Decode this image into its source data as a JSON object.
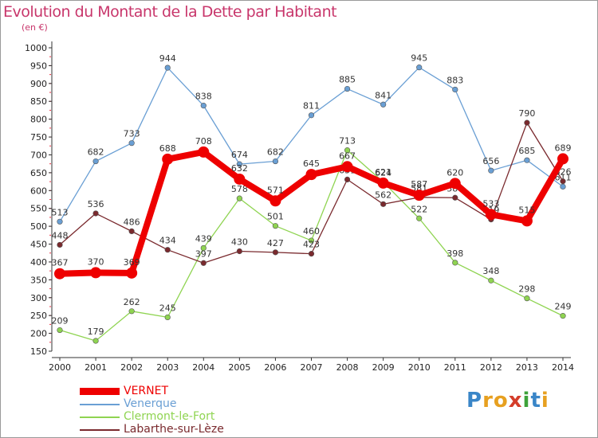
{
  "chart_data": {
    "type": "line",
    "title": "Evolution du Montant de la Dette par Habitant",
    "subtitle": "(en €)",
    "x": [
      "2000",
      "2001",
      "2002",
      "2003",
      "2004",
      "2005",
      "2006",
      "2007",
      "2008",
      "2009",
      "2010",
      "2011",
      "2012",
      "2013",
      "2014"
    ],
    "ylim": [
      150,
      1000
    ],
    "yticks": [
      150,
      200,
      250,
      300,
      350,
      400,
      450,
      500,
      550,
      600,
      650,
      700,
      750,
      800,
      850,
      900,
      950,
      1000
    ],
    "grid": false,
    "legend_position": "bottom-left",
    "series": [
      {
        "name": "Venerque",
        "color": "#6a9fd4",
        "values": [
          513,
          682,
          733,
          944,
          838,
          674,
          682,
          811,
          885,
          841,
          945,
          883,
          656,
          685,
          611
        ]
      },
      {
        "name": "Clermont-le-Fort",
        "color": "#8fd451",
        "values": [
          209,
          179,
          262,
          245,
          439,
          578,
          501,
          460,
          713,
          624,
          522,
          398,
          348,
          298,
          249
        ]
      },
      {
        "name": "Labarthe-sur-Lèze",
        "color": "#7a2a2e",
        "values": [
          448,
          536,
          486,
          434,
          397,
          430,
          427,
          423,
          631,
          562,
          581,
          580,
          519,
          790,
          626
        ]
      },
      {
        "name": "VERNET",
        "color": "#ee0000",
        "values": [
          367,
          370,
          369,
          688,
          708,
          632,
          571,
          645,
          667,
          621,
          587,
          620,
          533,
          515,
          689
        ]
      }
    ]
  },
  "legend": [
    {
      "name": "VERNET",
      "color": "#ee0000",
      "thick": true
    },
    {
      "name": "Venerque",
      "color": "#6a9fd4",
      "thick": false
    },
    {
      "name": "Clermont-le-Fort",
      "color": "#8fd451",
      "thick": false
    },
    {
      "name": "Labarthe-sur-Lèze",
      "color": "#7a2a2e",
      "thick": false
    }
  ],
  "logo": {
    "letters": [
      {
        "ch": "P",
        "color": "#3a86c8"
      },
      {
        "ch": "r",
        "color": "#e7a020"
      },
      {
        "ch": "o",
        "color": "#e7a020"
      },
      {
        "ch": "x",
        "color": "#d43d2a"
      },
      {
        "ch": "i",
        "color": "#3ea23a"
      },
      {
        "ch": "t",
        "color": "#3a86c8"
      },
      {
        "ch": "i",
        "color": "#e7a020"
      }
    ]
  }
}
